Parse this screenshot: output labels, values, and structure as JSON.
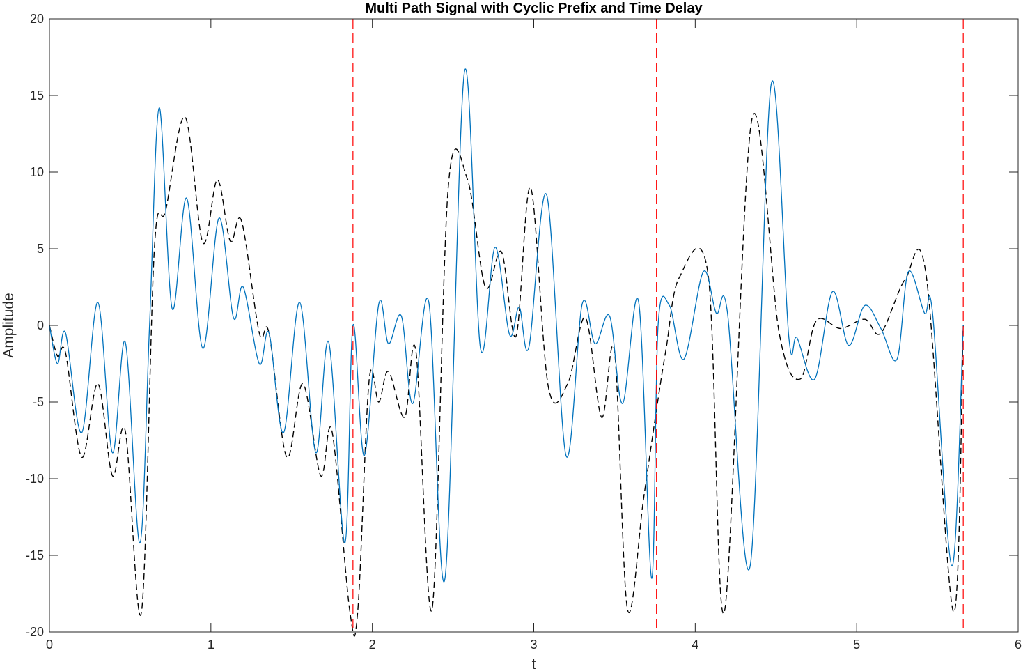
{
  "chart_data": {
    "type": "line",
    "title": "Multi Path Signal with Cyclic Prefix and Time Delay",
    "xlabel": "t",
    "ylabel": "Amplitude",
    "xlim": [
      0,
      6
    ],
    "ylim": [
      -20,
      20
    ],
    "xticks": [
      "0",
      "1",
      "2",
      "3",
      "4",
      "5",
      "6"
    ],
    "yticks": [
      "-20",
      "-15",
      "-10",
      "-5",
      "0",
      "5",
      "10",
      "15",
      "20"
    ],
    "grid": false,
    "legend": "none",
    "series": [
      {
        "style": "solid",
        "color": "#0072BD",
        "x": [
          0,
          0.05,
          0.1,
          0.2,
          0.3,
          0.39,
          0.47,
          0.56,
          0.62,
          0.68,
          0.76,
          0.85,
          0.95,
          1.05,
          1.14,
          1.2,
          1.3,
          1.36,
          1.45,
          1.55,
          1.65,
          1.73,
          1.83,
          1.88,
          1.95,
          2.04,
          2.1,
          2.18,
          2.25,
          2.35,
          2.45,
          2.57,
          2.67,
          2.76,
          2.85,
          2.91,
          2.97,
          3.08,
          3.2,
          3.3,
          3.38,
          3.47,
          3.55,
          3.65,
          3.73,
          3.77,
          3.84,
          3.93,
          4.05,
          4.13,
          4.2,
          4.34,
          4.47,
          4.58,
          4.63,
          4.74,
          4.85,
          4.95,
          5.05,
          5.15,
          5.25,
          5.32,
          5.42,
          5.47,
          5.59,
          5.66
        ],
        "y": [
          0,
          -2.5,
          -0.5,
          -7,
          1.5,
          -8.3,
          -1.1,
          -14.2,
          0,
          14.2,
          1.1,
          8.3,
          -1.5,
          7,
          0.5,
          2.5,
          -2.5,
          -0.5,
          -7,
          1.5,
          -8.3,
          -1.1,
          -14.2,
          0,
          -8.5,
          1.4,
          -1.2,
          0.6,
          -5.1,
          1.5,
          -16.5,
          16.5,
          -1.5,
          5.1,
          -0.6,
          1.2,
          -1.4,
          8.5,
          -8.5,
          1.4,
          -1.2,
          0.6,
          -5.1,
          1.5,
          -16.5,
          0,
          1.3,
          -2.2,
          3.5,
          0.8,
          0.8,
          -15.7,
          15.7,
          -0.8,
          -0.8,
          -3.5,
          2.2,
          -1.3,
          1.3,
          -0.2,
          -2.2,
          3.5,
          0.8,
          0.8,
          -15.7,
          0
        ]
      },
      {
        "style": "dashed",
        "color": "#000000",
        "x": [
          0,
          0.05,
          0.1,
          0.2,
          0.3,
          0.39,
          0.47,
          0.57,
          0.65,
          0.72,
          0.84,
          0.95,
          1.04,
          1.12,
          1.19,
          1.3,
          1.36,
          1.47,
          1.57,
          1.68,
          1.75,
          1.86,
          1.91,
          1.98,
          2.04,
          2.1,
          2.2,
          2.27,
          2.37,
          2.47,
          2.59,
          2.7,
          2.8,
          2.89,
          2.98,
          3.09,
          3.21,
          3.32,
          3.42,
          3.5,
          3.58,
          3.68,
          3.76,
          3.82,
          3.9,
          4.08,
          4.18,
          4.35,
          4.52,
          4.65,
          4.75,
          4.9,
          5.05,
          5.15,
          5.3,
          5.43,
          5.6,
          5.66
        ],
        "y": [
          0,
          -2,
          -1.8,
          -8.6,
          -3.8,
          -9.8,
          -6.9,
          -18.7,
          5,
          7.5,
          13.6,
          5.4,
          9.5,
          5.5,
          6.8,
          -0.5,
          -0.5,
          -8.6,
          -3.8,
          -9.8,
          -6.9,
          -18.6,
          -18.6,
          -3.6,
          -5,
          -3,
          -6,
          -1.7,
          -18.5,
          9,
          9.5,
          2.5,
          4.8,
          -0.7,
          9,
          -4,
          -3.8,
          0.5,
          -6,
          -1.7,
          -18.5,
          -11.3,
          -5.5,
          -1.5,
          3.1,
          3.3,
          -18.7,
          13.4,
          -0.5,
          -3.5,
          0.3,
          -0.2,
          0.4,
          -0.5,
          3,
          3.3,
          -18.7,
          0
        ]
      }
    ],
    "vlines": {
      "style": "dashed",
      "color": "#FF0000",
      "x": [
        1.88,
        3.76,
        5.66
      ]
    }
  }
}
